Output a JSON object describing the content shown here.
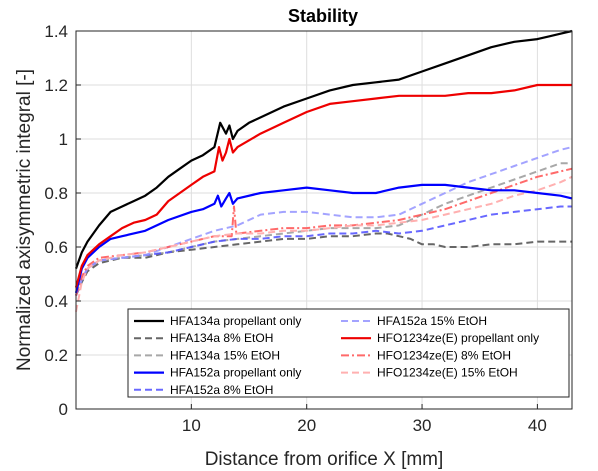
{
  "chart_data": {
    "type": "line",
    "title": "Stability",
    "xlabel": "Distance from orifice X [mm]",
    "ylabel": "Normalized axisymmetric integral [-]",
    "xlim": [
      0,
      43
    ],
    "ylim": [
      0,
      1.4
    ],
    "xticks": [
      10,
      20,
      30,
      40
    ],
    "yticks": [
      0,
      0.2,
      0.4,
      0.6,
      0.8,
      1,
      1.2,
      1.4
    ],
    "xtick_labels": [
      "10",
      "20",
      "30",
      "40"
    ],
    "ytick_labels": [
      "0",
      "0.2",
      "0.4",
      "0.6",
      "0.8",
      "1",
      "1.2",
      "1.4"
    ],
    "grid": true,
    "legend_position": "bottom-right",
    "series": [
      {
        "name": "HFA134a propellant only",
        "color": "#000000",
        "dash": "solid",
        "opacity": 1,
        "x": [
          0,
          0.5,
          1,
          2,
          3,
          4,
          5,
          6,
          7,
          8,
          9,
          10,
          11,
          12,
          12.5,
          13,
          13.3,
          13.6,
          14,
          15,
          16,
          18,
          20,
          22,
          24,
          26,
          28,
          30,
          32,
          34,
          36,
          38,
          40,
          41,
          42,
          43
        ],
        "y": [
          0.52,
          0.58,
          0.62,
          0.68,
          0.73,
          0.75,
          0.77,
          0.79,
          0.82,
          0.86,
          0.89,
          0.92,
          0.94,
          0.97,
          1.06,
          1.02,
          1.05,
          1.0,
          1.03,
          1.06,
          1.08,
          1.12,
          1.15,
          1.18,
          1.2,
          1.21,
          1.22,
          1.25,
          1.28,
          1.31,
          1.34,
          1.36,
          1.37,
          1.38,
          1.39,
          1.4
        ]
      },
      {
        "name": "HFA134a 8% EtOH",
        "color": "#666666",
        "dash": "dashed",
        "opacity": 1,
        "x": [
          0,
          0.5,
          1,
          2,
          3,
          4,
          6,
          8,
          10,
          12,
          14,
          16,
          18,
          20,
          22,
          24,
          26,
          27,
          28,
          29,
          30,
          31,
          32,
          34,
          36,
          38,
          40,
          42,
          43
        ],
        "y": [
          0.42,
          0.47,
          0.51,
          0.54,
          0.55,
          0.56,
          0.56,
          0.58,
          0.59,
          0.6,
          0.61,
          0.62,
          0.63,
          0.63,
          0.64,
          0.64,
          0.65,
          0.65,
          0.64,
          0.63,
          0.61,
          0.61,
          0.6,
          0.6,
          0.61,
          0.61,
          0.62,
          0.62,
          0.62
        ]
      },
      {
        "name": "HFA134a 15% EtOH",
        "color": "#999999",
        "dash": "dashed",
        "opacity": 0.85,
        "x": [
          0,
          0.5,
          1,
          2,
          4,
          6,
          8,
          10,
          12,
          14,
          16,
          18,
          20,
          22,
          24,
          26,
          28,
          30,
          32,
          34,
          36,
          38,
          40,
          42,
          43
        ],
        "y": [
          0.43,
          0.48,
          0.52,
          0.55,
          0.56,
          0.57,
          0.58,
          0.6,
          0.62,
          0.63,
          0.64,
          0.65,
          0.66,
          0.67,
          0.67,
          0.67,
          0.68,
          0.72,
          0.76,
          0.79,
          0.82,
          0.85,
          0.88,
          0.91,
          0.91
        ]
      },
      {
        "name": "HFA152a propellant only",
        "color": "#0000ff",
        "dash": "solid",
        "opacity": 1,
        "x": [
          0,
          0.5,
          1,
          2,
          3,
          4,
          6,
          8,
          10,
          11,
          12,
          12.3,
          12.6,
          13,
          13.3,
          13.6,
          14,
          16,
          18,
          20,
          22,
          24,
          26,
          28,
          30,
          32,
          34,
          36,
          38,
          40,
          42,
          43
        ],
        "y": [
          0.43,
          0.52,
          0.56,
          0.6,
          0.63,
          0.64,
          0.66,
          0.7,
          0.73,
          0.74,
          0.76,
          0.79,
          0.75,
          0.78,
          0.8,
          0.76,
          0.78,
          0.8,
          0.81,
          0.82,
          0.81,
          0.8,
          0.8,
          0.82,
          0.83,
          0.83,
          0.82,
          0.81,
          0.81,
          0.8,
          0.79,
          0.78
        ]
      },
      {
        "name": "HFA152a 8% EtOH",
        "color": "#4d4dff",
        "dash": "dashed",
        "opacity": 0.85,
        "x": [
          0,
          0.5,
          1,
          2,
          4,
          6,
          8,
          10,
          12,
          14,
          16,
          18,
          20,
          22,
          24,
          26,
          28,
          30,
          32,
          34,
          36,
          38,
          40,
          42,
          43
        ],
        "y": [
          0.42,
          0.48,
          0.52,
          0.55,
          0.56,
          0.57,
          0.58,
          0.6,
          0.62,
          0.63,
          0.63,
          0.64,
          0.64,
          0.65,
          0.65,
          0.66,
          0.65,
          0.66,
          0.68,
          0.7,
          0.72,
          0.73,
          0.74,
          0.75,
          0.75
        ]
      },
      {
        "name": "HFA152a 15% EtOH",
        "color": "#9999ff",
        "dash": "dashed",
        "opacity": 0.9,
        "x": [
          0,
          0.5,
          1,
          2,
          4,
          6,
          8,
          10,
          12,
          14,
          16,
          18,
          20,
          22,
          24,
          26,
          28,
          30,
          32,
          34,
          36,
          38,
          40,
          42,
          43
        ],
        "y": [
          0.42,
          0.48,
          0.52,
          0.55,
          0.56,
          0.57,
          0.6,
          0.63,
          0.66,
          0.68,
          0.72,
          0.73,
          0.73,
          0.72,
          0.71,
          0.71,
          0.72,
          0.76,
          0.8,
          0.84,
          0.87,
          0.9,
          0.93,
          0.96,
          0.97
        ]
      },
      {
        "name": "HFO1234ze(E) propellant only",
        "color": "#ee0000",
        "dash": "solid",
        "opacity": 1,
        "x": [
          0,
          0.5,
          1,
          2,
          3,
          4,
          5,
          6,
          7,
          8,
          9,
          10,
          11,
          12,
          12.4,
          12.7,
          13,
          13.3,
          13.6,
          14,
          16,
          18,
          20,
          22,
          24,
          26,
          28,
          30,
          32,
          34,
          36,
          38,
          40,
          42,
          43
        ],
        "y": [
          0.45,
          0.53,
          0.57,
          0.61,
          0.64,
          0.67,
          0.69,
          0.7,
          0.72,
          0.77,
          0.8,
          0.83,
          0.86,
          0.88,
          0.97,
          0.92,
          0.95,
          1.0,
          0.95,
          0.97,
          1.02,
          1.06,
          1.1,
          1.13,
          1.14,
          1.15,
          1.16,
          1.16,
          1.16,
          1.17,
          1.17,
          1.18,
          1.2,
          1.2,
          1.2
        ]
      },
      {
        "name": "HFO1234ze(E) 8% EtOH",
        "color": "#ff5a5a",
        "dash": "dashdot",
        "opacity": 0.9,
        "x": [
          0,
          0.5,
          1,
          2,
          4,
          6,
          8,
          10,
          12,
          13.5,
          13.7,
          13.9,
          14,
          16,
          18,
          20,
          22,
          24,
          26,
          28,
          30,
          32,
          34,
          36,
          38,
          40,
          42,
          43
        ],
        "y": [
          0.42,
          0.49,
          0.53,
          0.56,
          0.57,
          0.58,
          0.6,
          0.62,
          0.64,
          0.64,
          0.75,
          0.65,
          0.65,
          0.66,
          0.67,
          0.67,
          0.68,
          0.68,
          0.69,
          0.7,
          0.72,
          0.74,
          0.77,
          0.8,
          0.83,
          0.86,
          0.88,
          0.89
        ]
      },
      {
        "name": "HFO1234ze(E) 15% EtOH",
        "color": "#ffb0b0",
        "dash": "dashed",
        "opacity": 1,
        "x": [
          0,
          0.5,
          1,
          2,
          4,
          6,
          8,
          10,
          12,
          14,
          16,
          18,
          20,
          22,
          24,
          26,
          28,
          30,
          32,
          34,
          36,
          38,
          40,
          42,
          43
        ],
        "y": [
          0.36,
          0.47,
          0.52,
          0.55,
          0.57,
          0.58,
          0.6,
          0.62,
          0.64,
          0.65,
          0.65,
          0.66,
          0.66,
          0.67,
          0.68,
          0.68,
          0.69,
          0.7,
          0.72,
          0.74,
          0.76,
          0.79,
          0.81,
          0.84,
          0.86
        ]
      }
    ]
  }
}
